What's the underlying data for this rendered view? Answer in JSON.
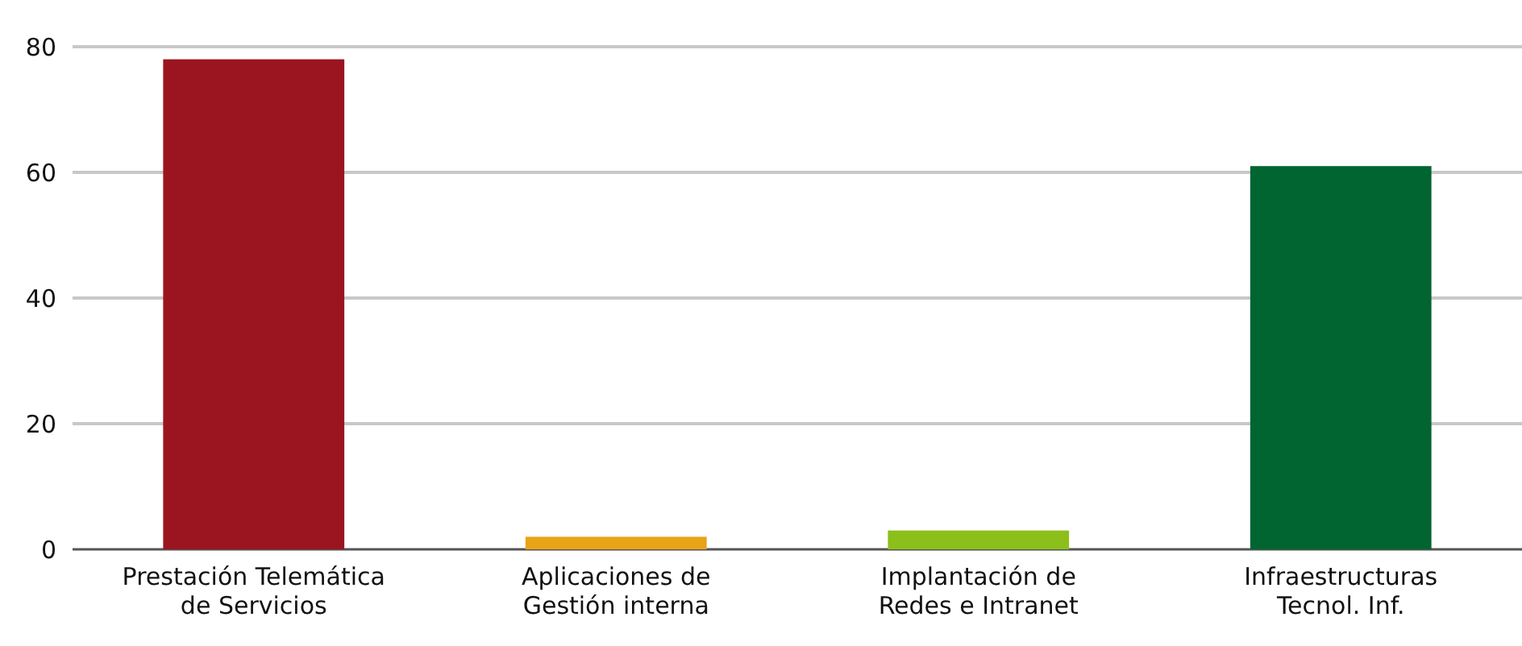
{
  "chart_data": {
    "type": "bar",
    "categories": [
      "Prestación Telemática de Servicios",
      "Aplicaciones de Gestión interna",
      "Implantación de Redes e Intranet",
      "Infraestructuras Tecnol. Inf."
    ],
    "values": [
      78,
      2,
      3,
      61
    ],
    "colors": [
      "#9b1520",
      "#e8a317",
      "#8cbf1a",
      "#006530"
    ],
    "ylim": [
      0,
      80
    ],
    "yticks": [
      0,
      20,
      40,
      60,
      80
    ],
    "grid": "y"
  }
}
